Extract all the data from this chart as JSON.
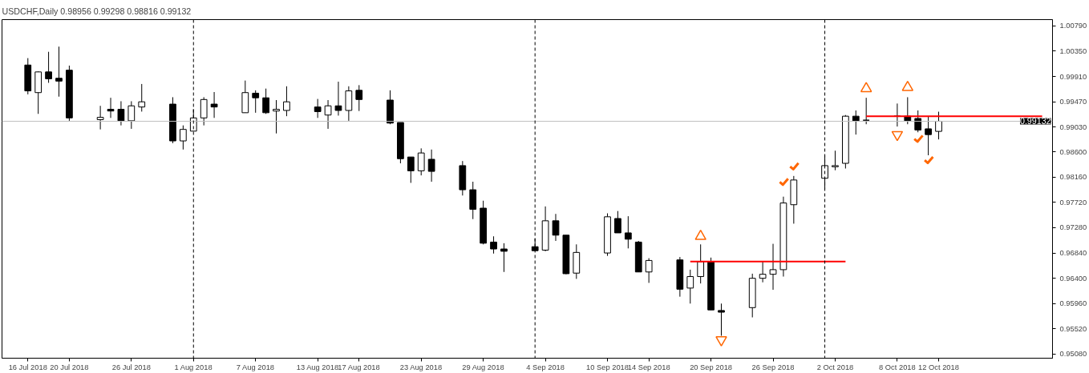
{
  "chart_data": {
    "type": "candlestick",
    "title": "USDCHF,Daily  0.98956 0.99298 0.98816 0.99132",
    "x": [
      "2018-07-16",
      "2018-07-17",
      "2018-07-18",
      "2018-07-19",
      "2018-07-20",
      "2018-07-23",
      "2018-07-24",
      "2018-07-25",
      "2018-07-26",
      "2018-07-27",
      "2018-07-30",
      "2018-07-31",
      "2018-08-01",
      "2018-08-02",
      "2018-08-03",
      "2018-08-06",
      "2018-08-07",
      "2018-08-08",
      "2018-08-09",
      "2018-08-10",
      "2018-08-13",
      "2018-08-14",
      "2018-08-15",
      "2018-08-16",
      "2018-08-17",
      "2018-08-20",
      "2018-08-21",
      "2018-08-22",
      "2018-08-23",
      "2018-08-24",
      "2018-08-27",
      "2018-08-28",
      "2018-08-29",
      "2018-08-30",
      "2018-08-31",
      "2018-09-03",
      "2018-09-04",
      "2018-09-05",
      "2018-09-06",
      "2018-09-07",
      "2018-09-10",
      "2018-09-11",
      "2018-09-12",
      "2018-09-13",
      "2018-09-14",
      "2018-09-17",
      "2018-09-18",
      "2018-09-19",
      "2018-09-20",
      "2018-09-21",
      "2018-09-24",
      "2018-09-25",
      "2018-09-26",
      "2018-09-27",
      "2018-09-28",
      "2018-10-01",
      "2018-10-02",
      "2018-10-03",
      "2018-10-04",
      "2018-10-05",
      "2018-10-08",
      "2018-10-09",
      "2018-10-10",
      "2018-10-11",
      "2018-10-12"
    ],
    "ohlc": [
      [
        1.0011,
        1.0023,
        0.996,
        0.9966
      ],
      [
        0.9963,
        1.0,
        0.9926,
        0.9999
      ],
      [
        0.9999,
        1.0034,
        0.998,
        0.9987
      ],
      [
        0.9988,
        1.0043,
        0.9956,
        0.9983
      ],
      [
        1.0002,
        1.001,
        0.9914,
        0.9919
      ],
      [
        0.9916,
        0.994,
        0.9899,
        0.992
      ],
      [
        0.9934,
        0.9954,
        0.9919,
        0.9931
      ],
      [
        0.9934,
        0.9948,
        0.9906,
        0.9914
      ],
      [
        0.9914,
        0.9948,
        0.99,
        0.994
      ],
      [
        0.9938,
        0.9978,
        0.993,
        0.9947
      ],
      [
        0.9943,
        0.9955,
        0.9875,
        0.9879
      ],
      [
        0.9879,
        0.9906,
        0.9864,
        0.9899
      ],
      [
        0.9896,
        0.9934,
        0.9896,
        0.9919
      ],
      [
        0.9919,
        0.9955,
        0.9906,
        0.9951
      ],
      [
        0.9943,
        0.9964,
        0.9919,
        0.9938
      ],
      [
        0.9928,
        0.9984,
        0.9928,
        0.9963
      ],
      [
        0.9962,
        0.9967,
        0.9928,
        0.9954
      ],
      [
        0.9954,
        0.997,
        0.9926,
        0.9928
      ],
      [
        0.9931,
        0.995,
        0.9892,
        0.9934
      ],
      [
        0.9932,
        0.9974,
        0.9922,
        0.9947
      ],
      [
        0.9938,
        0.9952,
        0.9919,
        0.993
      ],
      [
        0.9924,
        0.995,
        0.99,
        0.994
      ],
      [
        0.994,
        0.9982,
        0.9923,
        0.9932
      ],
      [
        0.9932,
        0.9974,
        0.9914,
        0.9966
      ],
      [
        0.9967,
        0.9976,
        0.9931,
        0.9951
      ],
      [
        0.995,
        0.9967,
        0.9908,
        0.991
      ],
      [
        0.9911,
        0.9911,
        0.984,
        0.9848
      ],
      [
        0.9851,
        0.9851,
        0.9806,
        0.9827
      ],
      [
        0.9827,
        0.9866,
        0.9819,
        0.9858
      ],
      [
        0.9847,
        0.9864,
        0.9808,
        0.9826
      ],
      [
        0.9836,
        0.9844,
        0.9784,
        0.9794
      ],
      [
        0.9794,
        0.9808,
        0.9743,
        0.976
      ],
      [
        0.9762,
        0.9775,
        0.9699,
        0.9701
      ],
      [
        0.9703,
        0.9713,
        0.9683,
        0.9691
      ],
      [
        0.9691,
        0.9701,
        0.9651,
        0.9687
      ],
      [
        0.9695,
        0.9709,
        0.9688,
        0.9688
      ],
      [
        0.9689,
        0.9765,
        0.9687,
        0.974
      ],
      [
        0.974,
        0.9752,
        0.9705,
        0.9715
      ],
      [
        0.9715,
        0.9715,
        0.9647,
        0.9648
      ],
      [
        0.9649,
        0.9699,
        0.9639,
        0.9685
      ],
      [
        0.9684,
        0.9753,
        0.9679,
        0.9747
      ],
      [
        0.9744,
        0.9757,
        0.9719,
        0.9719
      ],
      [
        0.9719,
        0.9748,
        0.9692,
        0.9708
      ],
      [
        0.9703,
        0.9705,
        0.9651,
        0.9651
      ],
      [
        0.9651,
        0.9675,
        0.9632,
        0.9671
      ],
      [
        0.9672,
        0.9677,
        0.9608,
        0.9621
      ],
      [
        0.9623,
        0.9655,
        0.9596,
        0.9643
      ],
      [
        0.9643,
        0.9699,
        0.9631,
        0.9669
      ],
      [
        0.9669,
        0.9676,
        0.9585,
        0.9585
      ],
      [
        0.9584,
        0.9596,
        0.954,
        0.9581
      ],
      [
        0.9589,
        0.9648,
        0.9572,
        0.964
      ],
      [
        0.964,
        0.9669,
        0.9633,
        0.9647
      ],
      [
        0.9647,
        0.97,
        0.962,
        0.9655
      ],
      [
        0.9655,
        0.9782,
        0.9643,
        0.9771
      ],
      [
        0.9768,
        0.9818,
        0.9735,
        0.9811
      ],
      [
        0.9814,
        0.9854,
        0.9795,
        0.9836
      ],
      [
        0.9834,
        0.9862,
        0.9828,
        0.9836
      ],
      [
        0.984,
        0.9924,
        0.9831,
        0.9922
      ],
      [
        0.9922,
        0.9932,
        0.989,
        0.9914
      ],
      [
        0.9915,
        0.9954,
        0.9908,
        0.9915
      ],
      [
        0.9922,
        0.9944,
        0.9904,
        0.9922
      ],
      [
        0.9922,
        0.9955,
        0.9908,
        0.9914
      ],
      [
        0.9918,
        0.9932,
        0.9894,
        0.9898
      ],
      [
        0.99,
        0.9922,
        0.9854,
        0.989
      ],
      [
        0.98956,
        0.99298,
        0.98816,
        0.99132
      ]
    ],
    "series": [
      {
        "type": "line",
        "color": "#ff0000",
        "x": [
          "2018-09-18",
          "2018-10-03"
        ],
        "values": [
          0.9669,
          0.9669
        ]
      },
      {
        "type": "line",
        "color": "#ff0000",
        "x": [
          "2018-10-05",
          "2018-10-22"
        ],
        "values": [
          0.9922,
          0.9922
        ]
      },
      {
        "type": "scatter",
        "marker": "triangle",
        "color": "#ff6600",
        "x": [
          "2018-09-19",
          "2018-10-05",
          "2018-10-09"
        ],
        "values": [
          0.9713,
          0.997,
          0.9972
        ]
      },
      {
        "type": "scatter",
        "marker": "triangle_down",
        "color": "#ff6600",
        "x": [
          "2018-09-21",
          "2018-10-08"
        ],
        "values": [
          0.9533,
          0.989
        ]
      },
      {
        "type": "scatter",
        "color": "#ff6600",
        "x": [
          "2018-09-27",
          "2018-09-28",
          "2018-10-10",
          "2018-10-11"
        ],
        "values": [
          0.9808,
          0.9835,
          0.9883,
          0.9846
        ]
      }
    ],
    "ref_lines": [
      {
        "axis": "y",
        "value": 0.99132,
        "label": "0.99132",
        "color": "#c0c0c0",
        "line_style": "solid"
      },
      {
        "axis": "x",
        "value": "2018-08-01",
        "color": "#000000",
        "line_style": "dashed"
      },
      {
        "axis": "x",
        "value": "2018-09-03",
        "color": "#000000",
        "line_style": "dashed"
      },
      {
        "axis": "x",
        "value": "2018-10-01",
        "color": "#000000",
        "line_style": "dashed"
      }
    ],
    "xlim": [
      "2018-07-13T12:00",
      "2018-10-23"
    ],
    "xticks": [
      {
        "value": "2018-07-16",
        "label": "16 Jul 2018"
      },
      {
        "value": "2018-07-20",
        "label": "20 Jul 2018"
      },
      {
        "value": "2018-07-26",
        "label": "26 Jul 2018"
      },
      {
        "value": "2018-08-01",
        "label": "1 Aug 2018"
      },
      {
        "value": "2018-08-07",
        "label": "7 Aug 2018"
      },
      {
        "value": "2018-08-13",
        "label": "13 Aug 2018"
      },
      {
        "value": "2018-08-17",
        "label": "17 Aug 2018"
      },
      {
        "value": "2018-08-23",
        "label": "23 Aug 2018"
      },
      {
        "value": "2018-08-29",
        "label": "29 Aug 2018"
      },
      {
        "value": "2018-09-04",
        "label": "4 Sep 2018"
      },
      {
        "value": "2018-09-10",
        "label": "10 Sep 2018"
      },
      {
        "value": "2018-09-14",
        "label": "14 Sep 2018"
      },
      {
        "value": "2018-09-20",
        "label": "20 Sep 2018"
      },
      {
        "value": "2018-09-26",
        "label": "26 Sep 2018"
      },
      {
        "value": "2018-10-02",
        "label": "2 Oct 2018"
      },
      {
        "value": "2018-10-08",
        "label": "8 Oct 2018"
      },
      {
        "value": "2018-10-12",
        "label": "12 Oct 2018"
      }
    ],
    "ylim": [
      0.9501,
      1.009
    ],
    "yticks": [
      {
        "value": 1.0079,
        "label": "1.00790"
      },
      {
        "value": 1.0035,
        "label": "1.00350"
      },
      {
        "value": 0.9991,
        "label": "0.99910"
      },
      {
        "value": 0.9947,
        "label": "0.99470"
      },
      {
        "value": 0.9903,
        "label": "0.99030"
      },
      {
        "value": 0.986,
        "label": "0.98600"
      },
      {
        "value": 0.9816,
        "label": "0.98160"
      },
      {
        "value": 0.9772,
        "label": "0.97720"
      },
      {
        "value": 0.9728,
        "label": "0.97280"
      },
      {
        "value": 0.9684,
        "label": "0.96840"
      },
      {
        "value": 0.964,
        "label": "0.96400"
      },
      {
        "value": 0.9596,
        "label": "0.95960"
      },
      {
        "value": 0.9552,
        "label": "0.95520"
      },
      {
        "value": 0.9508,
        "label": "0.95080"
      }
    ]
  }
}
